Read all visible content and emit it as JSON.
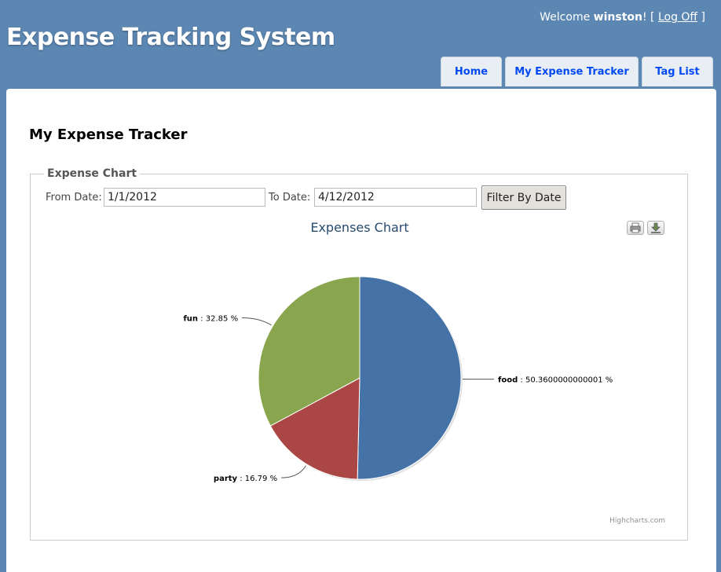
{
  "header": {
    "app_title": "Expense Tracking System",
    "welcome_text": "Welcome",
    "username": "winston",
    "welcome_suffix": "! [",
    "logoff_label": "Log Off",
    "logoff_suffix": "]"
  },
  "tabs": [
    {
      "label": "Home"
    },
    {
      "label": "My Expense Tracker"
    },
    {
      "label": "Tag List"
    }
  ],
  "page": {
    "title": "My Expense Tracker",
    "legend": "Expense Chart",
    "from_label": "From Date:",
    "from_value": "1/1/2012",
    "to_label": "To Date:",
    "to_value": "4/12/2012",
    "filter_button": "Filter By Date",
    "print_icon": "printer-icon",
    "export_icon": "download-icon"
  },
  "chart_data": {
    "type": "pie",
    "title": "Expenses Chart",
    "credits": "Highcharts.com",
    "slices": [
      {
        "name": "food",
        "value": 50.3600000000001,
        "label": "50.3600000000001 %",
        "color": "#4572a7"
      },
      {
        "name": "party",
        "value": 16.79,
        "label": "16.79 %",
        "color": "#aa4643"
      },
      {
        "name": "fun",
        "value": 32.85,
        "label": "32.85 %",
        "color": "#89a54e"
      }
    ]
  }
}
